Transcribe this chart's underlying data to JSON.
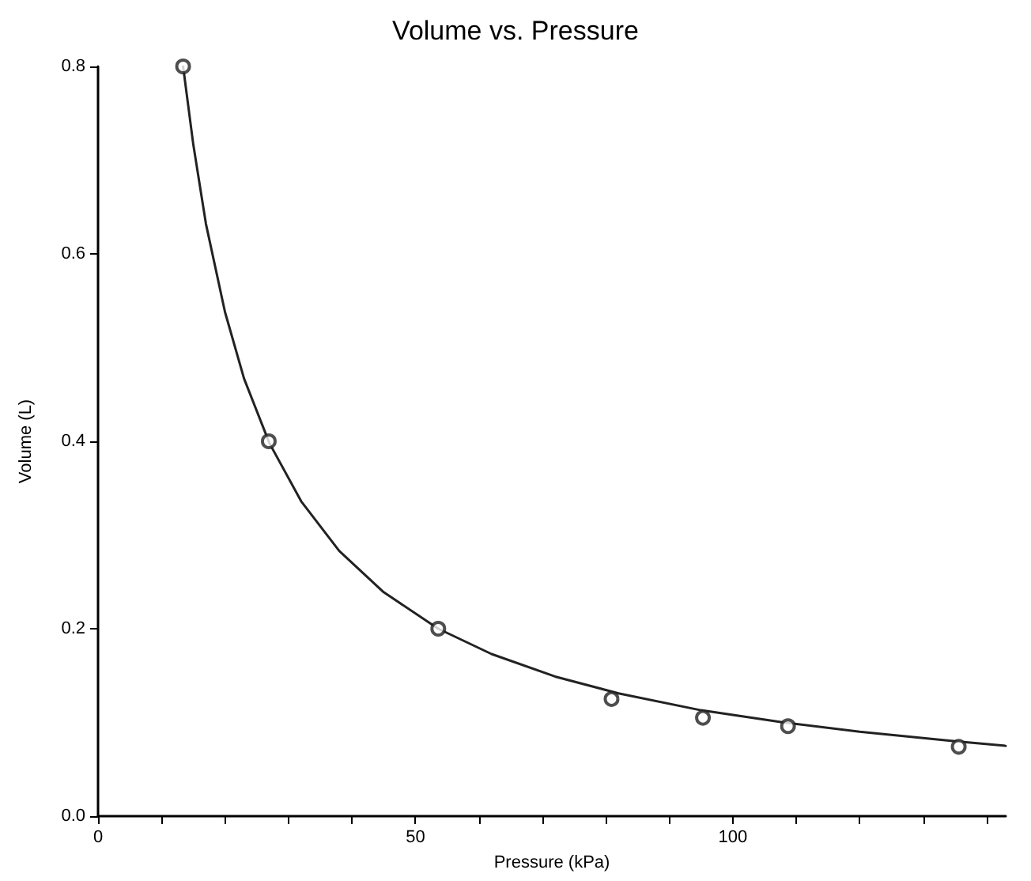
{
  "chart_data": {
    "type": "scatter",
    "title": "Volume vs. Pressure",
    "xlabel": "Pressure (kPa)",
    "ylabel": "Volume (L)",
    "xlim": [
      0,
      143
    ],
    "xticks": [
      0,
      {
        "value": 10,
        "label": null
      },
      {
        "value": 20,
        "label": null
      },
      {
        "value": 30,
        "label": null
      },
      {
        "value": 40,
        "label": null
      },
      50,
      {
        "value": 60,
        "label": null
      },
      {
        "value": 70,
        "label": null
      },
      {
        "value": 80,
        "label": null
      },
      {
        "value": 90,
        "label": null
      },
      100,
      {
        "value": 110,
        "label": null
      },
      {
        "value": 120,
        "label": null
      },
      {
        "value": 130,
        "label": null
      },
      {
        "value": 140,
        "label": null
      }
    ],
    "ylim": [
      0,
      0.8
    ],
    "yticks": [
      {
        "value": 0,
        "label": "0.0"
      },
      0.2,
      0.4,
      0.6,
      0.8
    ],
    "grid": false,
    "series": [
      {
        "type": "line",
        "color": "#222222",
        "marker": "none",
        "line_style": "solid",
        "x": [
          13.4,
          15,
          17,
          20,
          23,
          27,
          32,
          38,
          45,
          53.6,
          62,
          72,
          82,
          95,
          108,
          120,
          135,
          143
        ],
        "values": [
          0.8,
          0.717,
          0.632,
          0.538,
          0.467,
          0.398,
          0.336,
          0.283,
          0.239,
          0.2,
          0.173,
          0.149,
          0.131,
          0.113,
          0.1,
          0.09,
          0.08,
          0.075
        ]
      },
      {
        "color": "#222222",
        "marker": "circle",
        "x": [
          13.4,
          26.9,
          53.6,
          80.9,
          95.3,
          108.7,
          135.6
        ],
        "values": [
          0.8,
          0.4,
          0.2,
          0.125,
          0.105,
          0.096,
          0.074
        ]
      }
    ]
  }
}
